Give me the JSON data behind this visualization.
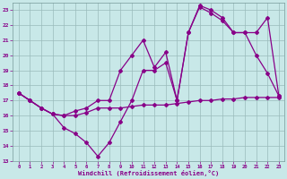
{
  "xlabel": "Windchill (Refroidissement éolien,°C)",
  "bg_color": "#c8e8e8",
  "line_color": "#880088",
  "grid_color": "#99bbbb",
  "xlim_min": -0.5,
  "xlim_max": 23.5,
  "ylim_min": 13,
  "ylim_max": 23.5,
  "yticks": [
    13,
    14,
    15,
    16,
    17,
    18,
    19,
    20,
    21,
    22,
    23
  ],
  "xticks": [
    0,
    1,
    2,
    3,
    4,
    5,
    6,
    7,
    8,
    9,
    10,
    11,
    12,
    13,
    14,
    15,
    16,
    17,
    18,
    19,
    20,
    21,
    22,
    23
  ],
  "series1_x": [
    0,
    1,
    2,
    3,
    4,
    5,
    6,
    7,
    8,
    9,
    10,
    11,
    12,
    13,
    14,
    15,
    16,
    17,
    18,
    19,
    20,
    21,
    22,
    23
  ],
  "series1_y": [
    17.5,
    17.0,
    16.5,
    16.1,
    16.0,
    16.0,
    16.2,
    16.5,
    16.5,
    16.5,
    16.6,
    16.7,
    16.7,
    16.7,
    16.8,
    16.9,
    17.0,
    17.0,
    17.1,
    17.1,
    17.2,
    17.2,
    17.2,
    17.2
  ],
  "series2_x": [
    0,
    1,
    2,
    3,
    4,
    5,
    6,
    7,
    8,
    9,
    10,
    11,
    12,
    13,
    14,
    15,
    16,
    17,
    18,
    19,
    20,
    21,
    22,
    23
  ],
  "series2_y": [
    17.5,
    17.0,
    16.5,
    16.1,
    15.2,
    14.8,
    14.2,
    13.3,
    14.2,
    15.6,
    17.0,
    19.0,
    19.0,
    19.5,
    17.0,
    21.5,
    23.3,
    23.0,
    22.5,
    21.5,
    21.5,
    21.5,
    22.5,
    17.3
  ],
  "series3_x": [
    0,
    1,
    2,
    3,
    4,
    5,
    6,
    7,
    8,
    9,
    10,
    11,
    12,
    13,
    14,
    15,
    16,
    17,
    18,
    19,
    20,
    21,
    22,
    23
  ],
  "series3_y": [
    17.5,
    17.0,
    16.5,
    16.1,
    16.0,
    16.3,
    16.5,
    17.0,
    17.0,
    19.0,
    20.0,
    21.0,
    19.2,
    20.2,
    17.0,
    21.5,
    23.2,
    22.8,
    22.3,
    21.5,
    21.5,
    20.0,
    18.8,
    17.3
  ]
}
